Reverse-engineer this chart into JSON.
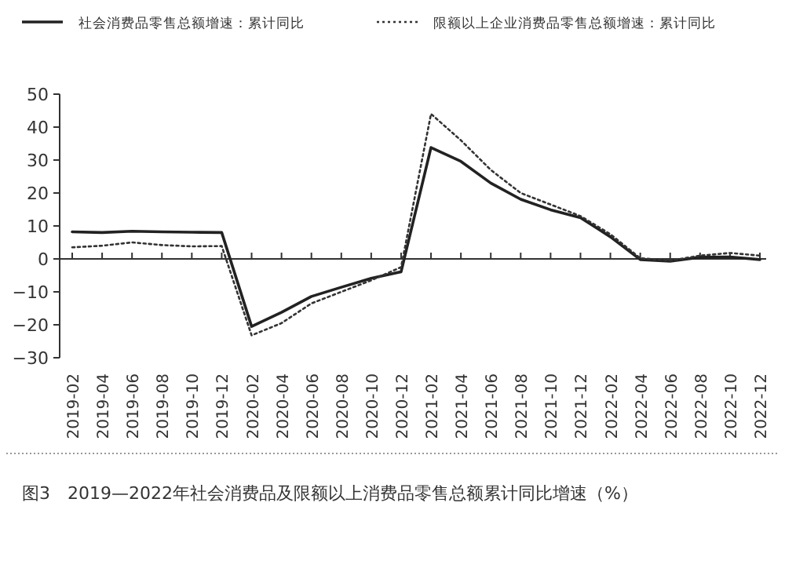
{
  "chart_data": {
    "type": "line",
    "categories": [
      "2019-02",
      "2019-04",
      "2019-06",
      "2019-08",
      "2019-10",
      "2019-12",
      "2020-02",
      "2020-04",
      "2020-06",
      "2020-08",
      "2020-10",
      "2020-12",
      "2021-02",
      "2021-04",
      "2021-06",
      "2021-08",
      "2021-10",
      "2021-12",
      "2022-02",
      "2022-04",
      "2022-06",
      "2022-08",
      "2022-10",
      "2022-12"
    ],
    "series": [
      {
        "name": "社会消费品零售总额增速：累计同比",
        "color": "#222222",
        "line_style": "solid",
        "values": [
          8.2,
          8.0,
          8.4,
          8.2,
          8.1,
          8.0,
          -20.5,
          -16.2,
          -11.4,
          -8.6,
          -5.9,
          -3.9,
          33.8,
          29.6,
          23.0,
          18.1,
          14.9,
          12.5,
          6.7,
          -0.2,
          -0.7,
          0.5,
          0.6,
          -0.2
        ]
      },
      {
        "name": "限额以上企业消费品零售总额增速：累计同比",
        "color": "#333333",
        "line_style": "dotted",
        "values": [
          3.5,
          4.0,
          5.0,
          4.2,
          3.8,
          3.9,
          -23.2,
          -19.5,
          -13.5,
          -10.0,
          -6.5,
          -2.5,
          44.0,
          36.0,
          27.0,
          20.0,
          16.5,
          13.0,
          7.5,
          0.2,
          -0.5,
          1.0,
          1.8,
          1.0
        ]
      }
    ],
    "ylim": [
      -30,
      50
    ],
    "yticks": [
      -30,
      -20,
      -10,
      0,
      10,
      20,
      30,
      40,
      50
    ],
    "legend": "top",
    "marker": "none",
    "annotations": [
      "图3　2019—2022年社会消费品及限额以上消费品零售总额累计同比增速（%）"
    ]
  }
}
